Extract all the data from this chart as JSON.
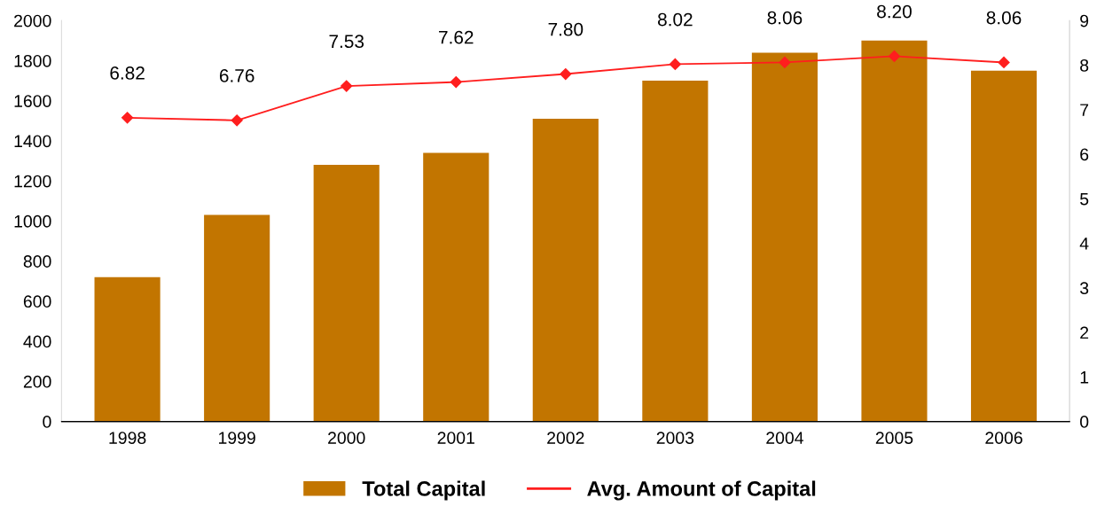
{
  "chart_data": {
    "type": "bar",
    "categories": [
      "1998",
      "1999",
      "2000",
      "2001",
      "2002",
      "2003",
      "2004",
      "2005",
      "2006"
    ],
    "series": [
      {
        "name": "Total Capital",
        "color": "#c27500",
        "values": [
          720,
          1030,
          1280,
          1340,
          1510,
          1700,
          1840,
          1900,
          1750
        ]
      },
      {
        "name": "Avg. Amount of Capital",
        "type": "line",
        "axis": "y2",
        "color": "#ff1e1e",
        "marker": "diamond",
        "values": [
          6.82,
          6.76,
          7.53,
          7.62,
          7.8,
          8.02,
          8.06,
          8.2,
          8.06
        ],
        "value_labels": [
          "6.82",
          "6.76",
          "7.53",
          "7.62",
          "7.80",
          "8.02",
          "8.06",
          "8.20",
          "8.06"
        ]
      }
    ],
    "ylim": [
      0,
      2000
    ],
    "yticks": [
      0,
      200,
      400,
      600,
      800,
      1000,
      1200,
      1400,
      1600,
      1800,
      2000
    ],
    "y2lim": [
      0,
      9
    ],
    "y2ticks": [
      0,
      1,
      2,
      3,
      4,
      5,
      6,
      7,
      8,
      9
    ],
    "grid": false,
    "legend": "bottom"
  }
}
